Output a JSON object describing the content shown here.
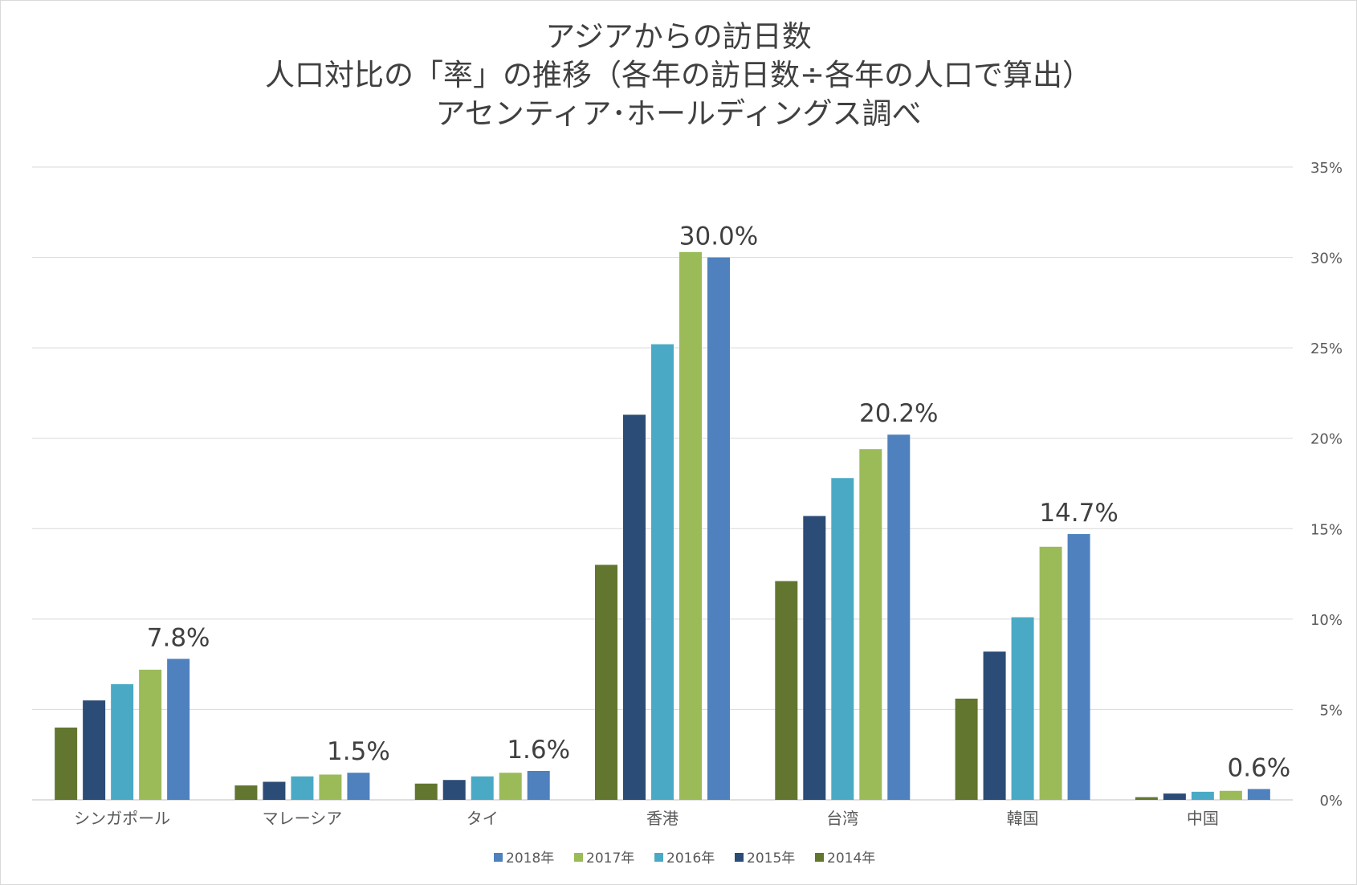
{
  "chart_data": {
    "type": "bar",
    "title_lines": [
      "アジアからの訪日数",
      "人口対比の「率」の推移（各年の訪日数÷各年の人口で算出）",
      "アセンティア･ホールディングス調べ"
    ],
    "categories": [
      "シンガポール",
      "マレーシア",
      "タイ",
      "香港",
      "台湾",
      "韓国",
      "中国"
    ],
    "series": [
      {
        "name": "2014年",
        "color": "#62762f",
        "values": [
          4.0,
          0.8,
          0.9,
          13.0,
          12.1,
          5.6,
          0.15
        ]
      },
      {
        "name": "2015年",
        "color": "#2b4c76",
        "values": [
          5.5,
          1.0,
          1.1,
          21.3,
          15.7,
          8.2,
          0.35
        ]
      },
      {
        "name": "2016年",
        "color": "#4aaac6",
        "values": [
          6.4,
          1.3,
          1.3,
          25.2,
          17.8,
          10.1,
          0.45
        ]
      },
      {
        "name": "2017年",
        "color": "#9bbb59",
        "values": [
          7.2,
          1.4,
          1.5,
          30.3,
          19.4,
          14.0,
          0.5
        ]
      },
      {
        "name": "2018年",
        "color": "#4e81bd",
        "values": [
          7.8,
          1.5,
          1.6,
          30.0,
          20.2,
          14.7,
          0.6
        ]
      }
    ],
    "data_labels": [
      "7.8%",
      "1.5%",
      "1.6%",
      "30.0%",
      "20.2%",
      "14.7%",
      "0.6%"
    ],
    "data_label_series": "2018年",
    "ylim": [
      0,
      35
    ],
    "y_ticks": [
      "0%",
      "5%",
      "10%",
      "15%",
      "20%",
      "25%",
      "30%",
      "35%"
    ],
    "y_axis_position": "right",
    "legend_order": [
      "2018年",
      "2017年",
      "2016年",
      "2015年",
      "2014年"
    ],
    "legend_position": "bottom",
    "grid": true
  }
}
